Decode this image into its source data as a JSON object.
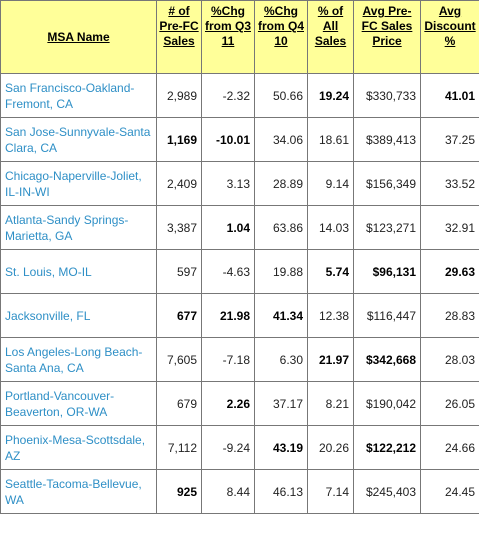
{
  "headers": [
    "MSA Name",
    "# of Pre-FC Sales",
    "%Chg from Q3 11",
    "%Chg from Q4 10",
    "% of All Sales",
    "Avg Pre-FC Sales Price",
    "Avg Discount %"
  ],
  "rows": [
    {
      "name": "San Francisco-Oakland-Fremont, CA",
      "sales": "2,989",
      "chg_q3": "-2.32",
      "chg_q4": "50.66",
      "pct_all": "19.24",
      "avg_price": "$330,733",
      "discount": "41.01"
    },
    {
      "name": "San Jose-Sunnyvale-Santa Clara, CA",
      "sales": "1,169",
      "chg_q3": "-10.01",
      "chg_q4": "34.06",
      "pct_all": "18.61",
      "avg_price": "$389,413",
      "discount": "37.25"
    },
    {
      "name": "Chicago-Naperville-Joliet, IL-IN-WI",
      "sales": "2,409",
      "chg_q3": "3.13",
      "chg_q4": "28.89",
      "pct_all": "9.14",
      "avg_price": "$156,349",
      "discount": "33.52"
    },
    {
      "name": "Atlanta-Sandy Springs-Marietta, GA",
      "sales": "3,387",
      "chg_q3": "1.04",
      "chg_q4": "63.86",
      "pct_all": "14.03",
      "avg_price": "$123,271",
      "discount": "32.91"
    },
    {
      "name": "St. Louis, MO-IL",
      "sales": "597",
      "chg_q3": "-4.63",
      "chg_q4": "19.88",
      "pct_all": "5.74",
      "avg_price": "$96,131",
      "discount": "29.63"
    },
    {
      "name": "Jacksonville, FL",
      "sales": "677",
      "chg_q3": "21.98",
      "chg_q4": "41.34",
      "pct_all": "12.38",
      "avg_price": "$116,447",
      "discount": "28.83"
    },
    {
      "name": "Los Angeles-Long Beach-Santa Ana, CA",
      "sales": "7,605",
      "chg_q3": "-7.18",
      "chg_q4": "6.30",
      "pct_all": "21.97",
      "avg_price": "$342,668",
      "discount": "28.03"
    },
    {
      "name": "Portland-Vancouver-Beaverton, OR-WA",
      "sales": "679",
      "chg_q3": "2.26",
      "chg_q4": "37.17",
      "pct_all": "8.21",
      "avg_price": "$190,042",
      "discount": "26.05"
    },
    {
      "name": "Phoenix-Mesa-Scottsdale, AZ",
      "sales": "7,112",
      "chg_q3": "-9.24",
      "chg_q4": "43.19",
      "pct_all": "20.26",
      "avg_price": "$122,212",
      "discount": "24.66"
    },
    {
      "name": "Seattle-Tacoma-Bellevue, WA",
      "sales": "925",
      "chg_q3": "8.44",
      "chg_q4": "46.13",
      "pct_all": "7.14",
      "avg_price": "$245,403",
      "discount": "24.45"
    }
  ],
  "colors": {
    "header_bg": "#ffff99",
    "link": "#2e8fc6",
    "border": "#777777"
  }
}
